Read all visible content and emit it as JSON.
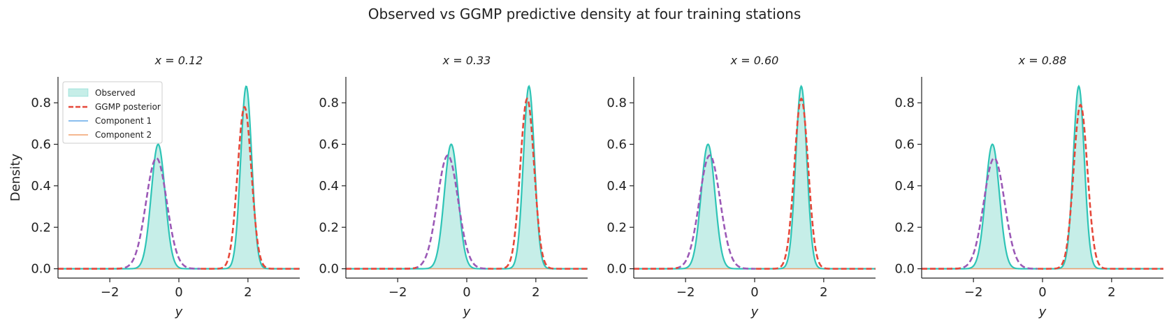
{
  "figure": {
    "title": "Observed vs GGMP predictive density at four training stations"
  },
  "colors": {
    "observed_fill": "#c6eee8",
    "observed_line": "#2ec4b6",
    "ggmp_posterior": "#e5483a",
    "component_1": "#64a8e8",
    "component_2": "#f2a06c",
    "component_1_peak_overlay": "#9b59b6"
  },
  "chart_data": [
    {
      "type": "line",
      "title": "x = 0.12",
      "xlabel": "y",
      "ylabel": "Density",
      "xlim": [
        -3.5,
        3.5
      ],
      "ylim": [
        -0.045,
        0.925
      ],
      "xticks": [
        -2,
        0,
        2
      ],
      "yticks": [
        0.0,
        0.2,
        0.4,
        0.6,
        0.8
      ],
      "legend": {
        "position": "top-left",
        "entries": [
          "Observed",
          "GGMP posterior",
          "Component 1",
          "Component 2"
        ]
      },
      "observed": {
        "means": [
          -0.6,
          1.95
        ],
        "sds": [
          0.2,
          0.16
        ],
        "weights": [
          0.3,
          0.35
        ]
      },
      "ggmp": {
        "means": [
          -0.65,
          1.9
        ],
        "sds": [
          0.3,
          0.2
        ],
        "weights": [
          0.4,
          0.39
        ]
      }
    },
    {
      "type": "line",
      "title": "x = 0.33",
      "xlabel": "y",
      "ylabel": "",
      "xlim": [
        -3.5,
        3.5
      ],
      "ylim": [
        -0.045,
        0.925
      ],
      "xticks": [
        -2,
        0,
        2
      ],
      "yticks": [
        0.0,
        0.2,
        0.4,
        0.6,
        0.8
      ],
      "observed": {
        "means": [
          -0.45,
          1.8
        ],
        "sds": [
          0.2,
          0.16
        ],
        "weights": [
          0.3,
          0.35
        ]
      },
      "ggmp": {
        "means": [
          -0.55,
          1.75
        ],
        "sds": [
          0.3,
          0.2
        ],
        "weights": [
          0.41,
          0.41
        ]
      }
    },
    {
      "type": "line",
      "title": "x = 0.60",
      "xlabel": "y",
      "ylabel": "",
      "xlim": [
        -3.5,
        3.5
      ],
      "ylim": [
        -0.045,
        0.925
      ],
      "xticks": [
        -2,
        0,
        2
      ],
      "yticks": [
        0.0,
        0.2,
        0.4,
        0.6,
        0.8
      ],
      "observed": {
        "means": [
          -1.35,
          1.35
        ],
        "sds": [
          0.2,
          0.16
        ],
        "weights": [
          0.3,
          0.35
        ]
      },
      "ggmp": {
        "means": [
          -1.3,
          1.35
        ],
        "sds": [
          0.3,
          0.2
        ],
        "weights": [
          0.41,
          0.41
        ]
      }
    },
    {
      "type": "line",
      "title": "x = 0.88",
      "xlabel": "y",
      "ylabel": "",
      "xlim": [
        -3.5,
        3.5
      ],
      "ylim": [
        -0.045,
        0.925
      ],
      "xticks": [
        -2,
        0,
        2
      ],
      "yticks": [
        0.0,
        0.2,
        0.4,
        0.6,
        0.8
      ],
      "observed": {
        "means": [
          -1.45,
          1.05
        ],
        "sds": [
          0.2,
          0.16
        ],
        "weights": [
          0.3,
          0.35
        ]
      },
      "ggmp": {
        "means": [
          -1.4,
          1.1
        ],
        "sds": [
          0.3,
          0.2
        ],
        "weights": [
          0.4,
          0.395
        ]
      }
    }
  ]
}
